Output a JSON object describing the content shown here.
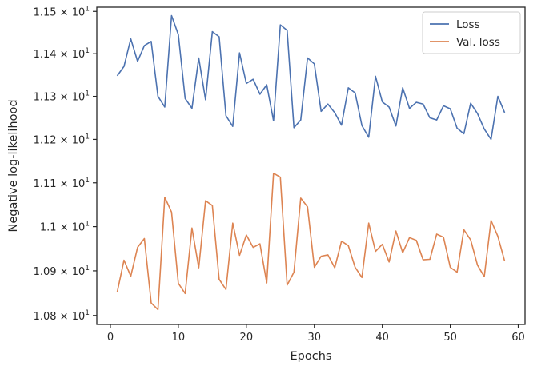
{
  "chart_data": {
    "type": "line",
    "title": "",
    "xlabel": "Epochs",
    "ylabel": "Negative log-likelihood",
    "xlim": [
      -2,
      61
    ],
    "ylim": [
      10.78,
      11.51
    ],
    "y_scale": "log",
    "grid": false,
    "legend_position": "top-right",
    "x_ticks": [
      0,
      10,
      20,
      30,
      40,
      50,
      60
    ],
    "x_tick_labels": [
      "0",
      "10",
      "20",
      "30",
      "40",
      "50",
      "60"
    ],
    "y_ticks": [
      10.8,
      10.9,
      11.0,
      11.1,
      11.2,
      11.3,
      11.4,
      11.5
    ],
    "y_tick_labels": [
      {
        "base": "1.08 × 10",
        "exp": "1"
      },
      {
        "base": "1.09 × 10",
        "exp": "1"
      },
      {
        "base": "1.1 × 10",
        "exp": "1"
      },
      {
        "base": "1.11 × 10",
        "exp": "1"
      },
      {
        "base": "1.12 × 10",
        "exp": "1"
      },
      {
        "base": "1.13 × 10",
        "exp": "1"
      },
      {
        "base": "1.14 × 10",
        "exp": "1"
      },
      {
        "base": "1.15 × 10",
        "exp": "1"
      }
    ],
    "x": [
      1,
      2,
      3,
      4,
      5,
      6,
      7,
      8,
      9,
      10,
      11,
      12,
      13,
      14,
      15,
      16,
      17,
      18,
      19,
      20,
      21,
      22,
      23,
      24,
      25,
      26,
      27,
      28,
      29,
      30,
      31,
      32,
      33,
      34,
      35,
      36,
      37,
      38,
      39,
      40,
      41,
      42,
      43,
      44,
      45,
      46,
      47,
      48,
      49,
      50,
      51,
      52,
      53,
      54,
      55,
      56,
      57,
      58
    ],
    "series": [
      {
        "name": "Loss",
        "color": "#4c72b0",
        "values": [
          11.348,
          11.37,
          11.435,
          11.382,
          11.419,
          11.429,
          11.3,
          11.275,
          11.49,
          11.445,
          11.295,
          11.272,
          11.39,
          11.292,
          11.452,
          11.44,
          11.255,
          11.23,
          11.402,
          11.33,
          11.34,
          11.305,
          11.327,
          11.243,
          11.468,
          11.455,
          11.227,
          11.245,
          11.39,
          11.376,
          11.265,
          11.282,
          11.262,
          11.233,
          11.32,
          11.308,
          11.232,
          11.205,
          11.347,
          11.287,
          11.275,
          11.231,
          11.32,
          11.272,
          11.286,
          11.282,
          11.25,
          11.245,
          11.278,
          11.271,
          11.226,
          11.213,
          11.284,
          11.26,
          11.224,
          11.2,
          11.3,
          11.262
        ]
      },
      {
        "name": "Val. loss",
        "color": "#dd8452",
        "values": [
          10.852,
          10.924,
          10.888,
          10.953,
          10.973,
          10.828,
          10.813,
          11.067,
          11.033,
          10.872,
          10.849,
          10.997,
          10.907,
          11.059,
          11.048,
          10.881,
          10.858,
          11.008,
          10.935,
          10.981,
          10.953,
          10.961,
          10.873,
          11.122,
          11.113,
          10.868,
          10.897,
          11.065,
          11.045,
          10.908,
          10.933,
          10.936,
          10.907,
          10.967,
          10.957,
          10.908,
          10.885,
          11.008,
          10.944,
          10.96,
          10.92,
          10.99,
          10.941,
          10.975,
          10.969,
          10.925,
          10.926,
          10.983,
          10.976,
          10.908,
          10.897,
          10.993,
          10.97,
          10.913,
          10.887,
          11.014,
          10.978,
          10.922
        ]
      }
    ]
  }
}
